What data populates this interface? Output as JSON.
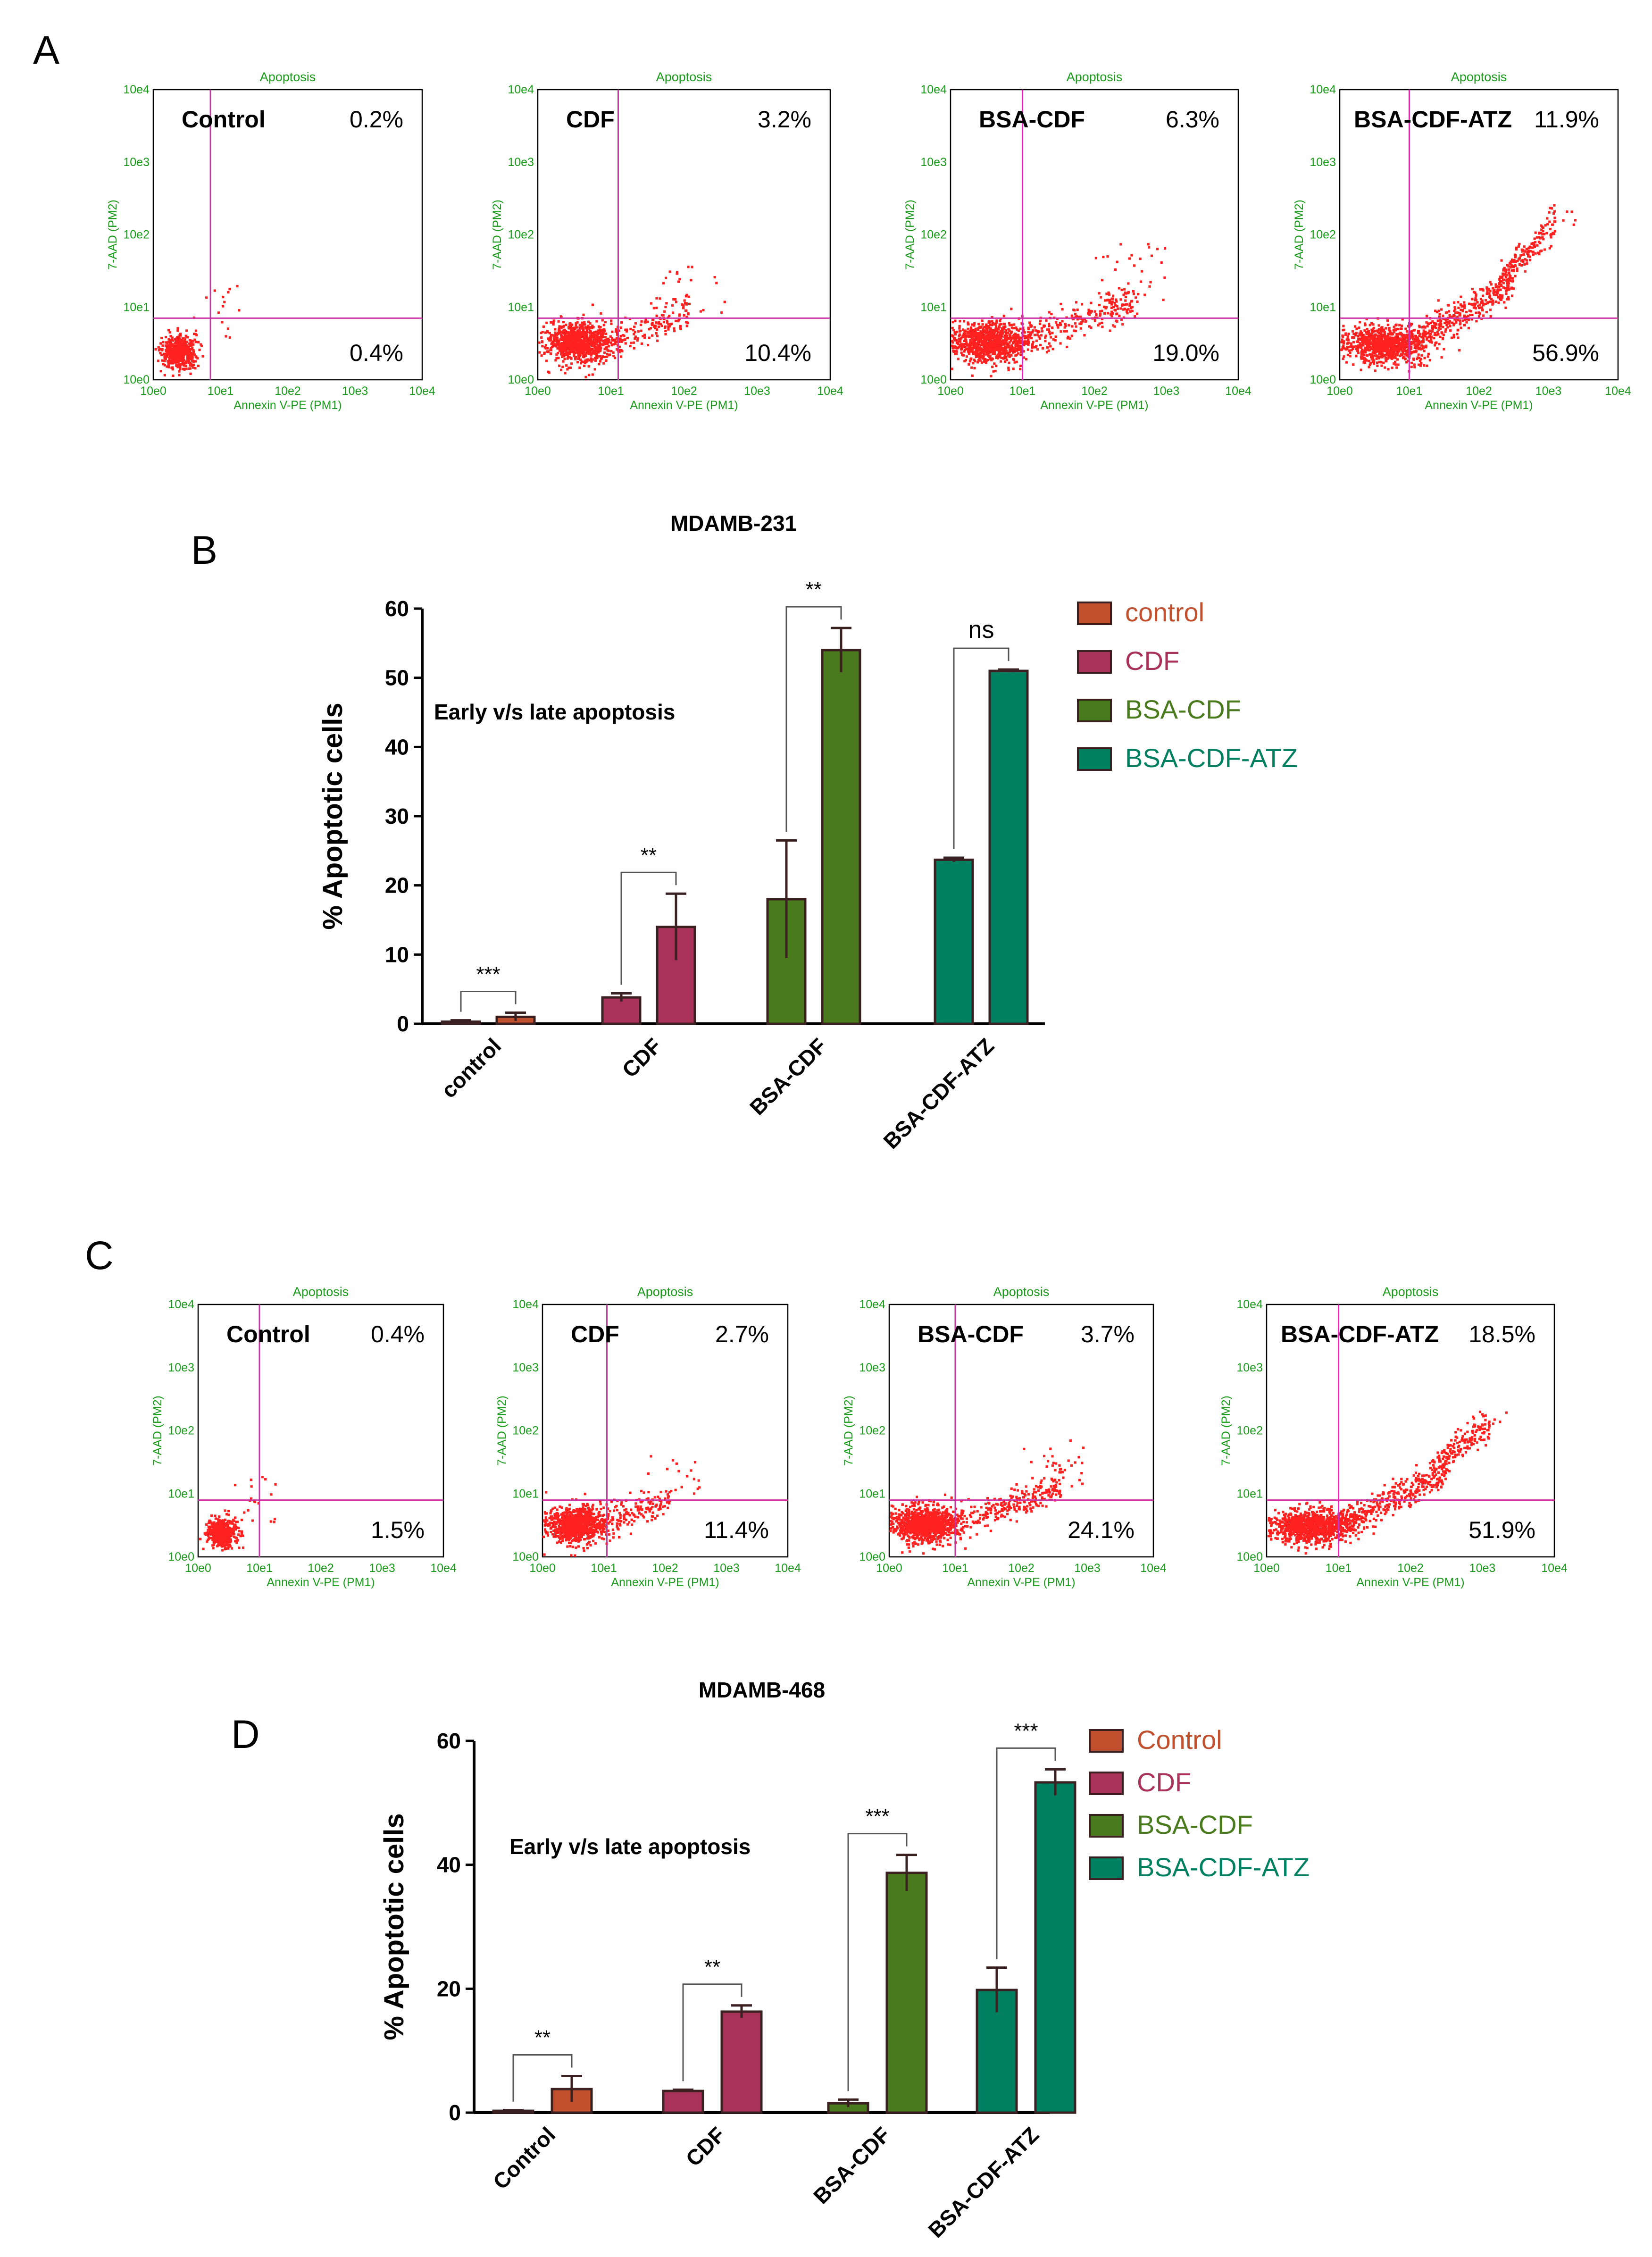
{
  "panel_letters": {
    "a": "A",
    "b": "B",
    "c": "C",
    "d": "D"
  },
  "flow_common": {
    "title": "Apoptosis",
    "xlabel": "Annexin V-PE (PM1)",
    "ylabel": "7-AAD (PM2)",
    "xticks": [
      "10e0",
      "10e1",
      "10e2",
      "10e3",
      "10e4"
    ],
    "yticks": [
      "10e0",
      "10e1",
      "10e2",
      "10e3",
      "10e4"
    ],
    "dot_color": "#ff2020",
    "gate_color": "#cc33aa"
  },
  "flow_panels": [
    {
      "name": "Control",
      "upper_pct": "0.2%",
      "lower_pct": "0.4%",
      "gate_x": 0.85,
      "gate_y": 0.85,
      "pattern": "tight"
    },
    {
      "name": "CDF",
      "upper_pct": "3.2%",
      "lower_pct": "10.4%",
      "gate_x": 1.1,
      "gate_y": 0.85,
      "pattern": "medium"
    },
    {
      "name": "BSA-CDF",
      "upper_pct": "6.3%",
      "lower_pct": "19.0%",
      "gate_x": 1.0,
      "gate_y": 0.85,
      "pattern": "wide"
    },
    {
      "name": "BSA-CDF-ATZ",
      "upper_pct": "11.9%",
      "lower_pct": "56.9%",
      "gate_x": 1.0,
      "gate_y": 0.85,
      "pattern": "diagonal"
    },
    {
      "name": "Control",
      "upper_pct": "0.4%",
      "lower_pct": "1.5%",
      "gate_x": 1.0,
      "gate_y": 0.9,
      "pattern": "tight"
    },
    {
      "name": "CDF",
      "upper_pct": "2.7%",
      "lower_pct": "11.4%",
      "gate_x": 1.05,
      "gate_y": 0.9,
      "pattern": "medium"
    },
    {
      "name": "BSA-CDF",
      "upper_pct": "3.7%",
      "lower_pct": "24.1%",
      "gate_x": 1.0,
      "gate_y": 0.9,
      "pattern": "wide"
    },
    {
      "name": "BSA-CDF-ATZ",
      "upper_pct": "18.5%",
      "lower_pct": "51.9%",
      "gate_x": 1.0,
      "gate_y": 0.9,
      "pattern": "diagonal"
    }
  ],
  "chart_data": [
    {
      "type": "bar",
      "title": "MDAMB-231",
      "ylabel": "% Apoptotic cells",
      "ylim": [
        0,
        60
      ],
      "yticks": [
        "0",
        "10",
        "20",
        "30",
        "40",
        "50",
        "60"
      ],
      "annotation": "Early v/s late apoptosis",
      "categories": [
        "control",
        "CDF",
        "BSA-CDF",
        "BSA-CDF-ATZ"
      ],
      "series": [
        {
          "values": [
            0.3,
            3.8,
            18.0,
            23.7
          ],
          "errors": [
            0.2,
            0.6,
            8.5,
            0.3
          ]
        },
        {
          "values": [
            1.0,
            14.0,
            54.0,
            51.0
          ],
          "errors": [
            0.6,
            4.8,
            3.2,
            0.2
          ]
        }
      ],
      "colors": [
        "#c0502e",
        "#a8325a",
        "#4a7a1e",
        "#008060"
      ],
      "legend": [
        "control",
        "CDF",
        "BSA-CDF",
        "BSA-CDF-ATZ"
      ],
      "legend_placement": "right",
      "significance": [
        "***",
        "**",
        "**",
        "ns"
      ]
    },
    {
      "type": "bar",
      "title": "MDAMB-468",
      "ylabel": "% Apoptotic cells",
      "ylim": [
        0,
        60
      ],
      "yticks": [
        "0",
        "20",
        "40",
        "60"
      ],
      "annotation": "Early v/s late apoptosis",
      "categories": [
        "Control",
        "CDF",
        "BSA-CDF",
        "BSA-CDF-ATZ"
      ],
      "series": [
        {
          "values": [
            0.3,
            3.5,
            1.5,
            19.8
          ],
          "errors": [
            0.1,
            0.2,
            0.6,
            3.6
          ]
        },
        {
          "values": [
            3.8,
            16.3,
            38.7,
            53.3
          ],
          "errors": [
            2.1,
            1.0,
            2.9,
            2.1
          ]
        }
      ],
      "colors": [
        "#c0502e",
        "#a8325a",
        "#4a7a1e",
        "#008060"
      ],
      "legend": [
        "Control",
        "CDF",
        "BSA-CDF",
        "BSA-CDF-ATZ"
      ],
      "legend_placement": "right",
      "significance": [
        "**",
        "**",
        "***",
        "***"
      ]
    }
  ]
}
